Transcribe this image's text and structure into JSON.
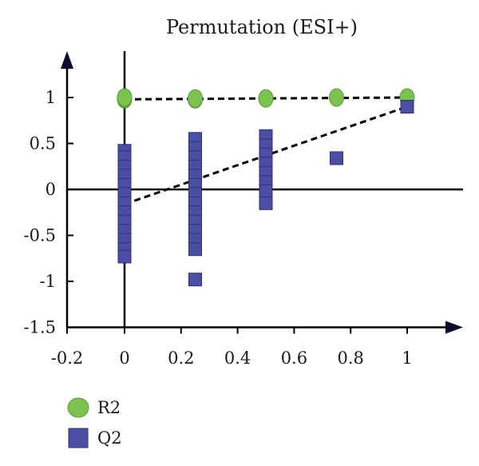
{
  "chart_data": {
    "type": "scatter",
    "title": "Permutation (ESI+)",
    "xlabel": "",
    "ylabel": "",
    "xlim": [
      -0.2,
      1.2
    ],
    "ylim": [
      -1.5,
      1.5
    ],
    "x_ticks": [
      "-0.2",
      "0",
      "0.2",
      "0.4",
      "0.6",
      "0.8",
      "1"
    ],
    "x_tick_values": [
      -0.2,
      0,
      0.2,
      0.4,
      0.6,
      0.8,
      1
    ],
    "y_ticks": [
      "-1.5",
      "-1",
      "-0.5",
      "0",
      "0.5",
      "1"
    ],
    "y_tick_values": [
      -1.5,
      -1,
      -0.5,
      0,
      0.5,
      1
    ],
    "grid": false,
    "legend_position": "bottom-left",
    "series": [
      {
        "name": "R2",
        "marker": "circle",
        "color": "#7cc24e",
        "points": [
          {
            "x": 0,
            "y": 0.98
          },
          {
            "x": 0,
            "y": 0.99
          },
          {
            "x": 0,
            "y": 1.0
          },
          {
            "x": 0.25,
            "y": 0.98
          },
          {
            "x": 0.25,
            "y": 0.99
          },
          {
            "x": 0.5,
            "y": 0.99
          },
          {
            "x": 0.75,
            "y": 1.0
          },
          {
            "x": 1,
            "y": 1.0
          }
        ],
        "trend_line": {
          "x": [
            0,
            1
          ],
          "y": [
            0.98,
            1.0
          ]
        }
      },
      {
        "name": "Q2",
        "marker": "square",
        "color": "#4a4fa3",
        "points": [
          {
            "x": 0,
            "y": 0.42
          },
          {
            "x": 0,
            "y": 0.35
          },
          {
            "x": 0,
            "y": 0.25
          },
          {
            "x": 0,
            "y": 0.15
          },
          {
            "x": 0,
            "y": 0.05
          },
          {
            "x": 0,
            "y": -0.05
          },
          {
            "x": 0,
            "y": -0.15
          },
          {
            "x": 0,
            "y": -0.25
          },
          {
            "x": 0,
            "y": -0.35
          },
          {
            "x": 0,
            "y": -0.45
          },
          {
            "x": 0,
            "y": -0.55
          },
          {
            "x": 0,
            "y": -0.65
          },
          {
            "x": 0,
            "y": -0.73
          },
          {
            "x": 0.25,
            "y": 0.55
          },
          {
            "x": 0.25,
            "y": 0.45
          },
          {
            "x": 0.25,
            "y": 0.35
          },
          {
            "x": 0.25,
            "y": 0.25
          },
          {
            "x": 0.25,
            "y": 0.15
          },
          {
            "x": 0.25,
            "y": 0.05
          },
          {
            "x": 0.25,
            "y": -0.05
          },
          {
            "x": 0.25,
            "y": -0.15
          },
          {
            "x": 0.25,
            "y": -0.25
          },
          {
            "x": 0.25,
            "y": -0.35
          },
          {
            "x": 0.25,
            "y": -0.45
          },
          {
            "x": 0.25,
            "y": -0.55
          },
          {
            "x": 0.25,
            "y": -0.65
          },
          {
            "x": 0.25,
            "y": -0.98
          },
          {
            "x": 0.5,
            "y": 0.58
          },
          {
            "x": 0.5,
            "y": 0.48
          },
          {
            "x": 0.5,
            "y": 0.38
          },
          {
            "x": 0.5,
            "y": 0.28
          },
          {
            "x": 0.5,
            "y": 0.18
          },
          {
            "x": 0.5,
            "y": 0.08
          },
          {
            "x": 0.5,
            "y": -0.02
          },
          {
            "x": 0.5,
            "y": -0.15
          },
          {
            "x": 0.75,
            "y": 0.34
          },
          {
            "x": 1,
            "y": 0.9
          }
        ],
        "trend_line": {
          "x": [
            0,
            1
          ],
          "y": [
            -0.16,
            0.9
          ]
        }
      }
    ]
  }
}
